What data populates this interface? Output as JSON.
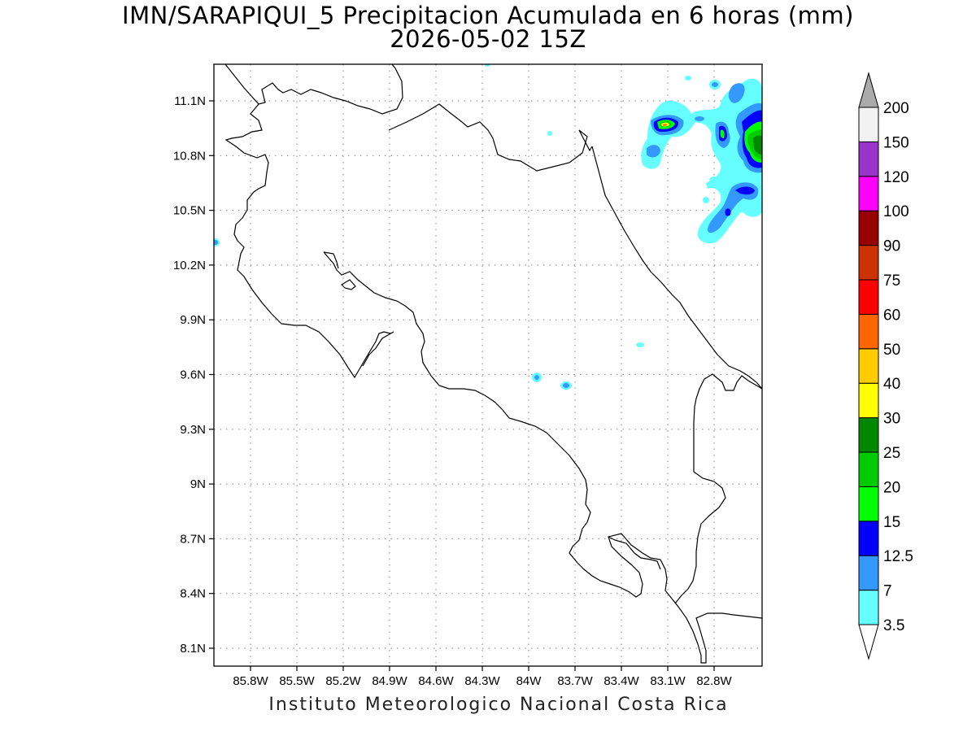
{
  "title_line1": "IMN/SARAPIQUI_5 Precipitacion Acumulada en 6 horas (mm)",
  "title_line2": "2026-05-02 15Z",
  "footer": "Instituto Meteorologico Nacional Costa Rica",
  "map": {
    "lon_labels": [
      "85.8W",
      "85.5W",
      "85.2W",
      "84.9W",
      "84.6W",
      "84.3W",
      "84W",
      "83.7W",
      "83.4W",
      "83.1W",
      "82.8W"
    ],
    "lat_labels": [
      "11.1N",
      "10.8N",
      "10.5N",
      "10.2N",
      "9.9N",
      "9.6N",
      "9.3N",
      "9N",
      "8.7N",
      "8.4N",
      "8.1N"
    ],
    "lon_values": [
      -85.8,
      -85.5,
      -85.2,
      -84.9,
      -84.6,
      -84.3,
      -84.0,
      -83.7,
      -83.4,
      -83.1,
      -82.8
    ],
    "lat_values": [
      11.1,
      10.8,
      10.5,
      10.2,
      9.9,
      9.6,
      9.3,
      9.0,
      8.7,
      8.4,
      8.1
    ],
    "grid": true,
    "variable": "Precipitacion Acumulada en 6 horas",
    "units": "mm"
  },
  "legend": {
    "levels": [
      "3.5",
      "7",
      "12.5",
      "15",
      "20",
      "25",
      "30",
      "40",
      "50",
      "60",
      "75",
      "90",
      "100",
      "120",
      "150",
      "200"
    ],
    "colors": [
      "#ffffff",
      "#66ffff",
      "#3399ff",
      "#0000ff",
      "#00ff00",
      "#00cc00",
      "#008800",
      "#ffff00",
      "#ffcc00",
      "#ff6600",
      "#ff0000",
      "#cc3300",
      "#990000",
      "#ff00ff",
      "#9933cc",
      "#f2f2f2",
      "#aaaaaa"
    ]
  }
}
